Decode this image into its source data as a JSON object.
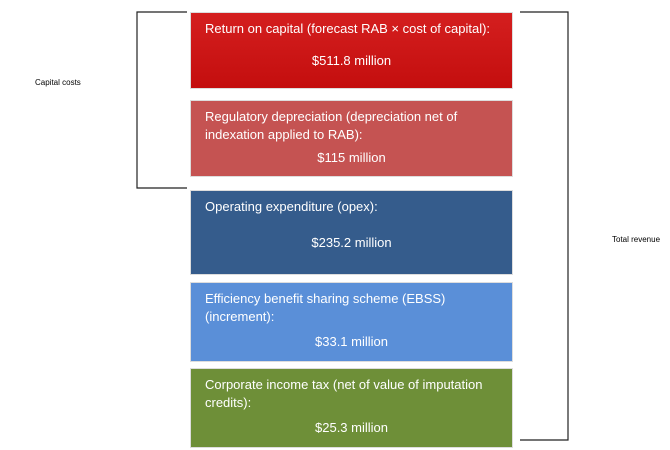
{
  "blocks": [
    {
      "label": "Return on capital (forecast RAB × cost of capital):",
      "value": "$511.8 million"
    },
    {
      "label": "Regulatory depreciation (depreciation net of indexation applied to RAB):",
      "value": "$115 million"
    },
    {
      "label": "Operating expenditure (opex):",
      "value": "$235.2 million"
    },
    {
      "label": "Efficiency benefit sharing scheme (EBSS) (increment):",
      "value": "$33.1 million"
    },
    {
      "label": "Corporate income tax (net of value of imputation credits):",
      "value": "$25.3 million"
    }
  ],
  "brackets": {
    "left": "Capital costs",
    "right": "Total revenue"
  }
}
